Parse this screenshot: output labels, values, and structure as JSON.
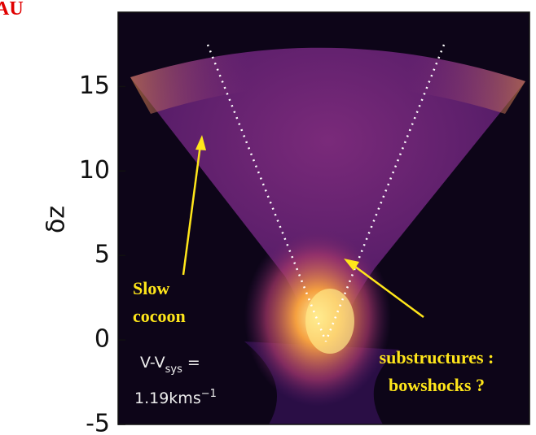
{
  "chart_data": {
    "type": "image",
    "corner_label": "AU",
    "ylabel": "δz",
    "ylim": [
      -5,
      19.4
    ],
    "yticks": [
      -5,
      0,
      5,
      10,
      15
    ],
    "annotations": {
      "slow": [
        "Slow",
        "cocoon"
      ],
      "substructures": [
        "substructures :",
        "bowshocks ?"
      ],
      "velocity": {
        "main": "V-V",
        "sub": "sys",
        "eq": " =",
        "value": "1.19kms",
        "sup": "−1"
      }
    }
  }
}
